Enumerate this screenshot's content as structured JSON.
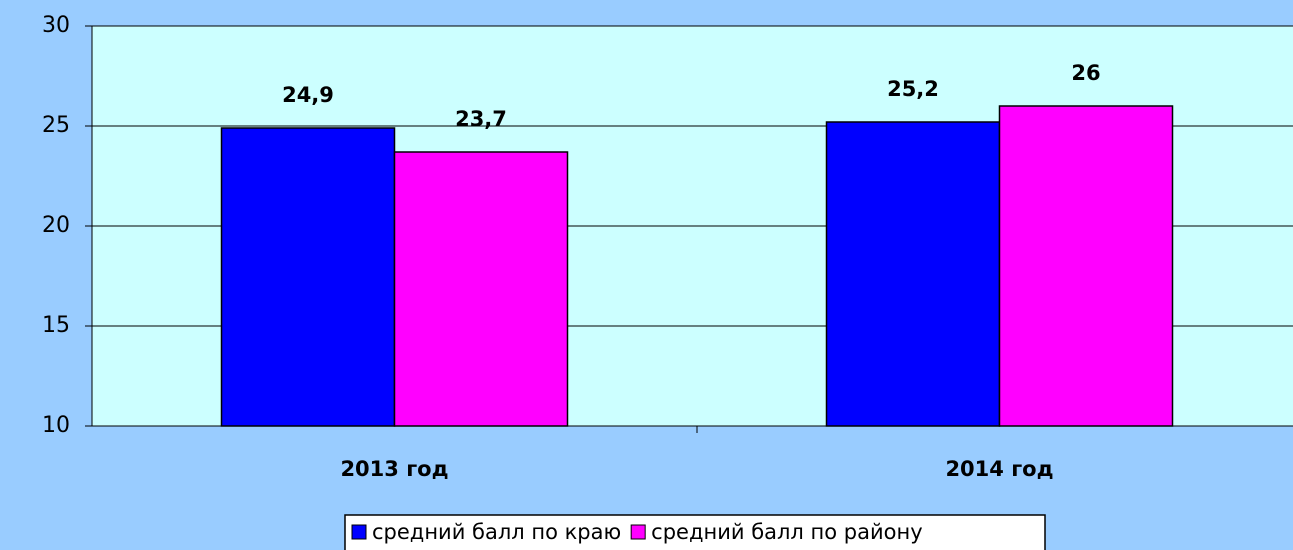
{
  "chart_data": {
    "type": "bar",
    "categories": [
      "2013 год",
      "2014 год"
    ],
    "series": [
      {
        "name": "средний балл по краю",
        "color": "#0000ff",
        "values": [
          24.9,
          25.2
        ],
        "value_labels": [
          "24,9",
          "25,2"
        ]
      },
      {
        "name": "средний балл по району",
        "color": "#ff00ff",
        "values": [
          23.7,
          26
        ],
        "value_labels": [
          "23,7",
          "26"
        ]
      }
    ],
    "ylim": [
      10,
      30
    ],
    "yticks": [
      10,
      15,
      20,
      25,
      30
    ],
    "grid": true,
    "legend": "bottom"
  }
}
